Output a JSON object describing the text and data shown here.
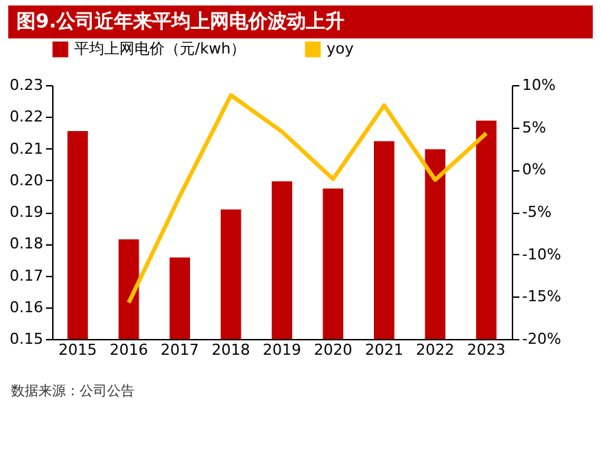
{
  "chart_data": {
    "type": "bar",
    "title": "图9.公司近年来平均上网电价波动上升",
    "categories": [
      "2015",
      "2016",
      "2017",
      "2018",
      "2019",
      "2020",
      "2021",
      "2022",
      "2023"
    ],
    "series": [
      {
        "name": "平均上网电价（元/kwh）",
        "color": "#c00000",
        "values": [
          0.2155,
          0.1814,
          0.1757,
          0.1908,
          0.1997,
          0.1974,
          0.2123,
          0.2098,
          0.2188
        ]
      },
      {
        "name": "yoy",
        "type": "line",
        "axis": "y2",
        "color": "#ffc000",
        "values": [
          null,
          -15.7,
          -3.1,
          8.8,
          4.5,
          -1.1,
          7.6,
          -1.2,
          4.3
        ]
      }
    ],
    "ylim": [
      0.15,
      0.23
    ],
    "yticks": [
      0.15,
      0.16,
      0.17,
      0.18,
      0.19,
      {
        "value": 0.2,
        "label": "0.20"
      },
      0.21,
      0.22,
      0.23
    ],
    "y2lim": [
      -20,
      10
    ],
    "y2ticks": [
      {
        "value": -20,
        "label": "-20%"
      },
      {
        "value": -15,
        "label": "-15%"
      },
      {
        "value": -10,
        "label": "-10%"
      },
      {
        "value": -5,
        "label": "-5%"
      },
      {
        "value": 0,
        "label": "0%"
      },
      {
        "value": 5,
        "label": "5%"
      },
      {
        "value": 10,
        "label": "10%"
      }
    ],
    "legend": "top",
    "grid": false,
    "annotations": [
      "数据来源：公司公告"
    ]
  }
}
